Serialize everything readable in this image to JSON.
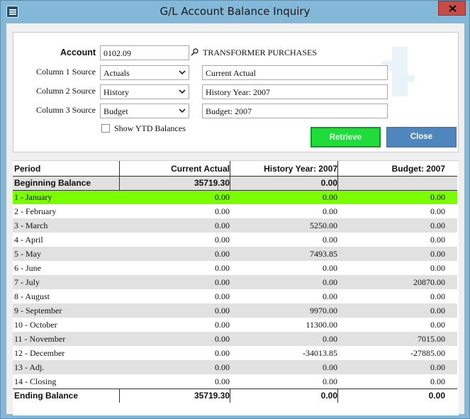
{
  "window": {
    "title": "G/L Account Balance Inquiry",
    "app_icon": "app-logo-icon",
    "close_icon": "close-icon"
  },
  "form": {
    "account_label": "Account",
    "account_value": "0102.09",
    "account_description": "TRANSFORMER PURCHASES",
    "col1_label": "Column 1 Source",
    "col1_value": "Actuals",
    "col1_title": "Current Actual",
    "col2_label": "Column 2 Source",
    "col2_value": "History",
    "col2_title": "History Year: 2007",
    "col3_label": "Column 3 Source",
    "col3_value": "Budget",
    "col3_title": "Budget: 2007",
    "show_ytd_label": "Show YTD Balances",
    "show_ytd_checked": false,
    "retrieve_label": "Retrieve",
    "close_label": "Close"
  },
  "grid": {
    "headers": [
      "Period",
      "Current Actual",
      "History Year: 2007",
      "Budget: 2007"
    ],
    "beginning": [
      "Beginning Balance",
      "35719.30",
      "0.00",
      ""
    ],
    "rows": [
      [
        "1  - January",
        "0.00",
        "0.00",
        "0.00"
      ],
      [
        "2  - February",
        "0.00",
        "0.00",
        "0.00"
      ],
      [
        "3  - March",
        "0.00",
        "5250.00",
        "0.00"
      ],
      [
        "4  - April",
        "0.00",
        "0.00",
        "0.00"
      ],
      [
        "5  - May",
        "0.00",
        "7493.85",
        "0.00"
      ],
      [
        "6  - June",
        "0.00",
        "0.00",
        "0.00"
      ],
      [
        "7  - July",
        "0.00",
        "0.00",
        "20870.00"
      ],
      [
        "8  - August",
        "0.00",
        "0.00",
        "0.00"
      ],
      [
        "9  - September",
        "0.00",
        "9970.00",
        "0.00"
      ],
      [
        "10 - October",
        "0.00",
        "11300.00",
        "0.00"
      ],
      [
        "11 - November",
        "0.00",
        "0.00",
        "7015.00"
      ],
      [
        "12 - December",
        "0.00",
        "-34013.85",
        "-27885.00"
      ],
      [
        "13 - Adj.",
        "0.00",
        "0.00",
        "0.00"
      ],
      [
        "14 - Closing",
        "0.00",
        "0.00",
        "0.00"
      ]
    ],
    "ending": [
      "Ending Balance",
      "35719.30",
      "0.00",
      "0.00"
    ],
    "selected_row_color": "#7cfc00",
    "stripe_color": "#e1e1e1"
  }
}
